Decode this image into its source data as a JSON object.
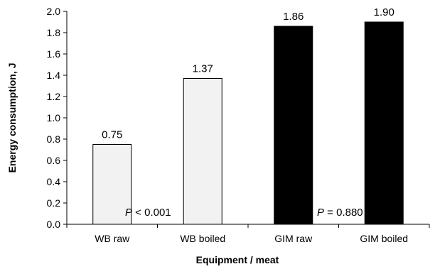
{
  "chart_data": {
    "type": "bar",
    "categories": [
      "WB raw",
      "WB boiled",
      "GIM raw",
      "GIM boiled"
    ],
    "values": [
      0.75,
      1.37,
      1.86,
      1.9
    ],
    "value_labels": [
      "0.75",
      "1.37",
      "1.86",
      "1.90"
    ],
    "bar_colors": [
      "#f2f2f2",
      "#f2f2f2",
      "#000000",
      "#000000"
    ],
    "xlabel": "Equipment / meat",
    "ylabel": "Energy consumption, J",
    "ylim": [
      0,
      2.0
    ],
    "yticks": [
      "0.0",
      "0.2",
      "0.4",
      "0.6",
      "0.8",
      "1.0",
      "1.2",
      "1.4",
      "1.6",
      "1.8",
      "2.0"
    ],
    "grid": false,
    "annotations": [
      {
        "italic": "P",
        "text": " < 0.001"
      },
      {
        "italic": "P",
        "text": " = 0.880"
      }
    ]
  }
}
